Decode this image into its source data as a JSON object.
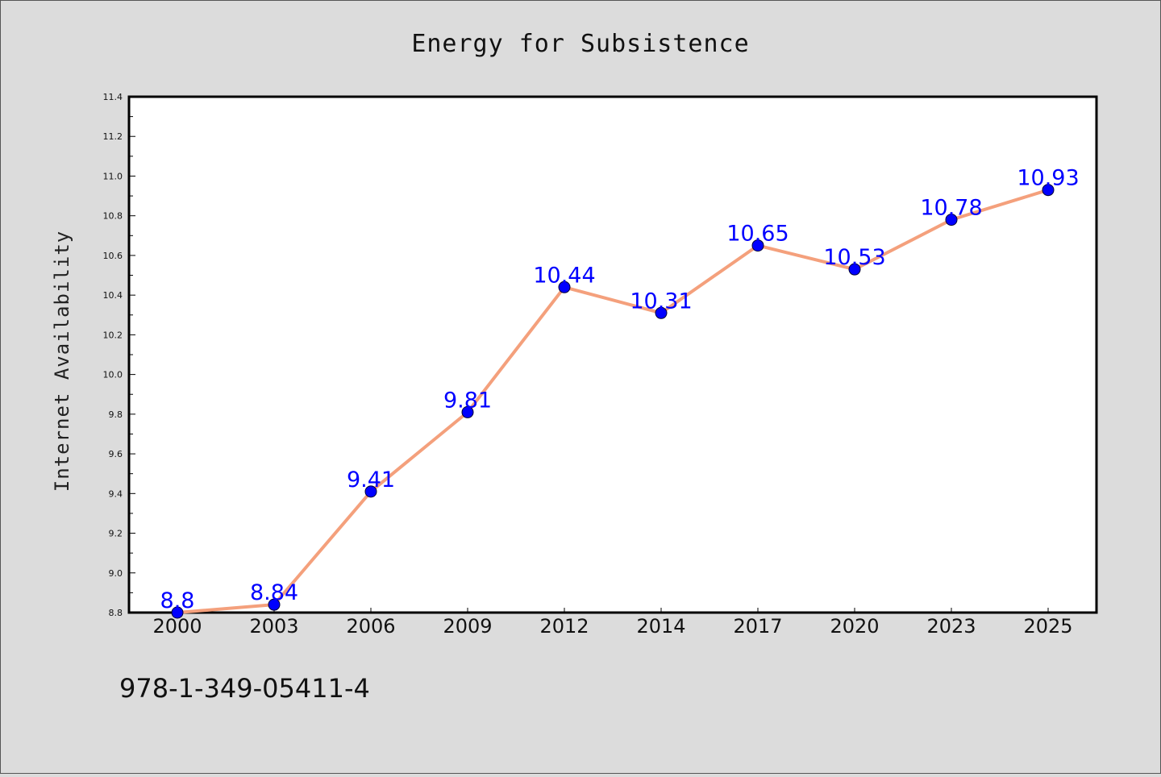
{
  "chart_data": {
    "type": "line",
    "title": "Energy for Subsistence",
    "xlabel": "",
    "ylabel": "Internet Availability",
    "categories": [
      "2000",
      "2003",
      "2006",
      "2009",
      "2012",
      "2014",
      "2017",
      "2020",
      "2023",
      "2025"
    ],
    "values": [
      8.8,
      8.84,
      9.41,
      9.81,
      10.44,
      10.31,
      10.65,
      10.53,
      10.78,
      10.93
    ],
    "data_labels": [
      "8.8",
      "8.84",
      "9.41",
      "9.81",
      "10.44",
      "10.31",
      "10.65",
      "10.53",
      "10.78",
      "10.93"
    ],
    "ylim": [
      8.8,
      11.4
    ],
    "yticks": [
      "8.8",
      "9.0",
      "9.2",
      "9.4",
      "9.6",
      "9.8",
      "10.0",
      "10.2",
      "10.4",
      "10.6",
      "10.8",
      "11.0",
      "11.2",
      "11.4"
    ],
    "grid": false,
    "legend": "none",
    "colors": {
      "line": "#f4a07c",
      "marker": "#0000ff",
      "label": "#0000ff",
      "background": "#dcdcdc",
      "plot_background": "#ffffff"
    }
  },
  "footnote": "978-1-349-05411-4"
}
